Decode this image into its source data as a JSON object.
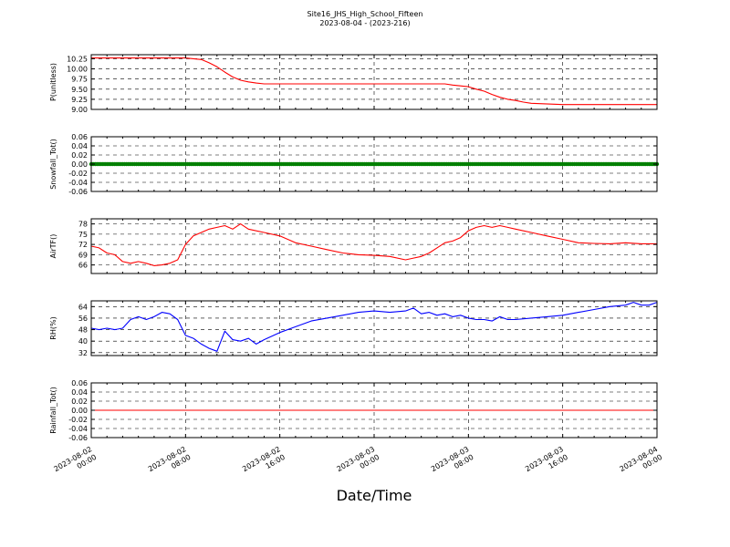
{
  "figure": {
    "title": "Site16_JHS_High_School_Fifteen",
    "subtitle": "2023-08-04 - (2023-216)",
    "xlabel": "Date/Time"
  },
  "chart_data": [
    {
      "type": "line",
      "ylabel": "P(unitless)",
      "ylim": [
        9.0,
        10.35
      ],
      "yticks": [
        "9.00",
        "9.25",
        "9.50",
        "9.75",
        "10.00",
        "10.25"
      ],
      "color": "#ff0000",
      "grid": true,
      "x_hours": [
        0,
        4,
        8,
        10,
        12,
        13,
        14,
        15,
        16,
        17,
        18,
        19,
        20,
        21,
        22,
        24,
        28,
        32,
        36,
        40,
        42,
        43,
        44,
        45,
        46,
        47,
        48,
        49,
        50,
        51,
        52,
        53,
        54,
        55,
        56,
        60,
        64,
        68,
        72
      ],
      "y": [
        10.27,
        10.27,
        10.27,
        10.27,
        10.27,
        10.25,
        10.23,
        10.15,
        10.05,
        9.92,
        9.8,
        9.72,
        9.68,
        9.65,
        9.63,
        9.63,
        9.63,
        9.63,
        9.63,
        9.63,
        9.63,
        9.63,
        9.63,
        9.63,
        9.6,
        9.58,
        9.56,
        9.5,
        9.45,
        9.37,
        9.3,
        9.25,
        9.22,
        9.18,
        9.15,
        9.12,
        9.12,
        9.12,
        9.12
      ]
    },
    {
      "type": "scatter",
      "ylabel": "Snowfall_Tot()",
      "ylim": [
        -0.06,
        0.06
      ],
      "yticks": [
        "-0.06",
        "-0.04",
        "-0.02",
        "0.00",
        "0.02",
        "0.04",
        "0.06"
      ],
      "color": "#008000",
      "grid": true,
      "x_hours": [
        0,
        72
      ],
      "y": [
        0,
        0
      ],
      "note_points": "constant 0.00 across full range"
    },
    {
      "type": "line",
      "ylabel": "AirTF()",
      "ylim": [
        63.5,
        79.5
      ],
      "yticks": [
        "66",
        "69",
        "72",
        "75",
        "78"
      ],
      "color": "#ff0000",
      "grid": true,
      "x_hours": [
        0,
        1,
        2,
        3,
        4,
        5,
        6,
        7,
        8,
        9,
        10,
        11,
        12,
        13,
        14,
        15,
        16,
        17,
        18,
        19,
        20,
        22,
        24,
        26,
        28,
        30,
        32,
        34,
        36,
        38,
        40,
        41,
        42,
        43,
        44,
        45,
        46,
        47,
        48,
        49,
        50,
        51,
        52,
        53,
        54,
        56,
        58,
        60,
        62,
        64,
        66,
        68,
        70,
        72
      ],
      "y": [
        71.5,
        71,
        69.5,
        69,
        67,
        66.5,
        67,
        66.5,
        65.8,
        66,
        66.5,
        67.5,
        72,
        74.5,
        75.5,
        76.5,
        77,
        77.5,
        76.5,
        78,
        76.5,
        75.5,
        74.5,
        72.5,
        71.5,
        70.5,
        69.5,
        69,
        68.8,
        68.5,
        67.5,
        68,
        68.5,
        69.5,
        71,
        72.5,
        73,
        74,
        76,
        77,
        77.5,
        77,
        77.5,
        77,
        76.5,
        75.5,
        74.5,
        73.5,
        72.5,
        72.3,
        72.2,
        72.5,
        72.2,
        72.2
      ]
    },
    {
      "type": "line",
      "ylabel": "RH(%)",
      "ylim": [
        30,
        68
      ],
      "yticks": [
        "32",
        "40",
        "48",
        "56",
        "64"
      ],
      "color": "#0000ff",
      "grid": true,
      "x_hours": [
        0,
        1,
        2,
        3,
        4,
        5,
        6,
        7,
        8,
        9,
        10,
        11,
        12,
        13,
        14,
        15,
        16,
        17,
        18,
        19,
        20,
        21,
        22,
        24,
        26,
        28,
        30,
        32,
        34,
        36,
        38,
        40,
        41,
        42,
        43,
        44,
        45,
        46,
        47,
        48,
        49,
        50,
        51,
        52,
        53,
        54,
        56,
        58,
        60,
        62,
        64,
        66,
        68,
        69,
        70,
        71,
        72
      ],
      "y": [
        49,
        48,
        49,
        48,
        49,
        55,
        57,
        55,
        57,
        60,
        59,
        55,
        44,
        42,
        38,
        35,
        33,
        47,
        41,
        40,
        42,
        38,
        41,
        46,
        50,
        54,
        56,
        58,
        60,
        61,
        60,
        61,
        63,
        59,
        60,
        58,
        59,
        57,
        58,
        56,
        55,
        55,
        54,
        57,
        55,
        55,
        56,
        57,
        58,
        60,
        62,
        64,
        65,
        67,
        65,
        65,
        67
      ]
    },
    {
      "type": "line",
      "ylabel": "Rainfall_Tot()",
      "ylim": [
        -0.06,
        0.06
      ],
      "yticks": [
        "-0.06",
        "-0.04",
        "-0.02",
        "0.00",
        "0.02",
        "0.04",
        "0.06"
      ],
      "color": "#ff0000",
      "grid": true,
      "x_hours": [
        0,
        72
      ],
      "y": [
        0,
        0
      ]
    }
  ],
  "xaxis": {
    "range_hours": [
      0,
      72
    ],
    "major_ticks": [
      {
        "hour": 0,
        "line1": "2023-08-02",
        "line2": "00:00"
      },
      {
        "hour": 12,
        "line1": "2023-08-02",
        "line2": "08:00"
      },
      {
        "hour": 24,
        "line1": "2023-08-02",
        "line2": "16:00"
      },
      {
        "hour": 36,
        "line1": "2023-08-03",
        "line2": "00:00"
      },
      {
        "hour": 48,
        "line1": "2023-08-03",
        "line2": "08:00"
      },
      {
        "hour": 60,
        "line1": "2023-08-03",
        "line2": "16:00"
      },
      {
        "hour": 72,
        "line1": "2023-08-04",
        "line2": "00:00"
      }
    ]
  }
}
